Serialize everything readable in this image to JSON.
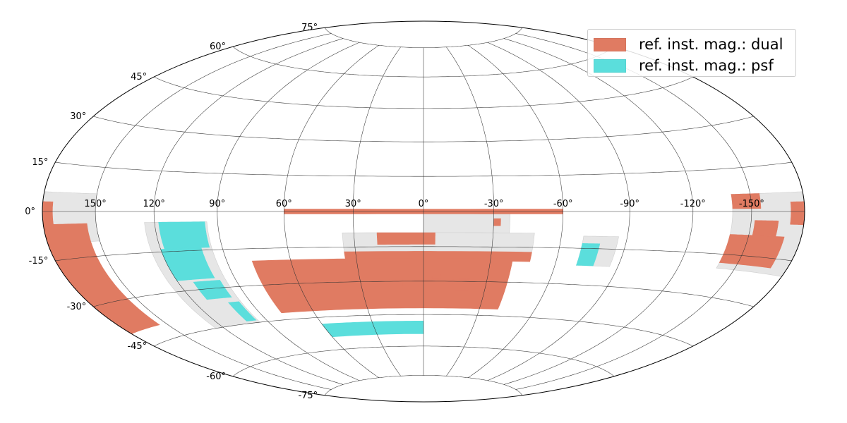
{
  "map": {
    "projection": "Hammer-Aitoff",
    "lon_center": 0,
    "lon_direction": "east-left",
    "grid": true,
    "lat_labels": [
      {
        "lat": 75,
        "text": "75°"
      },
      {
        "lat": 60,
        "text": "60°"
      },
      {
        "lat": 45,
        "text": "45°"
      },
      {
        "lat": 30,
        "text": "30°"
      },
      {
        "lat": 15,
        "text": "15°"
      },
      {
        "lat": 0,
        "text": "0°"
      },
      {
        "lat": -15,
        "text": "-15°"
      },
      {
        "lat": -30,
        "text": "-30°"
      },
      {
        "lat": -45,
        "text": "-45°"
      },
      {
        "lat": -60,
        "text": "-60°"
      },
      {
        "lat": -75,
        "text": "-75°"
      }
    ],
    "lon_labels": [
      {
        "lon": 150,
        "text": "150°"
      },
      {
        "lon": 120,
        "text": "120°"
      },
      {
        "lon": 90,
        "text": "90°"
      },
      {
        "lon": 60,
        "text": "60°"
      },
      {
        "lon": 30,
        "text": "30°"
      },
      {
        "lon": 0,
        "text": "0°"
      },
      {
        "lon": -30,
        "text": "-30°"
      },
      {
        "lon": -60,
        "text": "-60°"
      },
      {
        "lon": -90,
        "text": "-90°"
      },
      {
        "lon": -120,
        "text": "-120°"
      },
      {
        "lon": -150,
        "text": "-150°"
      }
    ],
    "colors": {
      "dual": "#e07b62",
      "psf": "#5bdedc",
      "footprint": "#e6e6e6",
      "grid": "#333333"
    }
  },
  "legend": {
    "placement": "top-right",
    "items": [
      {
        "label": "ref. inst. mag.: dual",
        "color": "#e07b62"
      },
      {
        "label": "ref. inst. mag.: psf",
        "color": "#5bdedc"
      }
    ]
  },
  "regions": [
    {
      "name": "equatorial-stripe",
      "kind": "dual",
      "lon": [
        -60,
        60
      ],
      "lat": [
        -1,
        1
      ]
    },
    {
      "name": "stripe-82-extension",
      "kind": "footprint",
      "lon": [
        -37,
        0
      ],
      "lat": [
        -9,
        -1
      ]
    },
    {
      "name": "stripe-82-notch",
      "kind": "dual",
      "lon": [
        -33,
        -30
      ],
      "lat": [
        -6,
        -3
      ]
    },
    {
      "name": "south-central-band",
      "kind": "footprint",
      "lon": [
        -48,
        35
      ],
      "lat": [
        -19,
        -9
      ]
    },
    {
      "name": "south-central-dual-blocks",
      "kind": "dual",
      "lon": [
        -5,
        20
      ],
      "lat": [
        -14,
        -9
      ]
    },
    {
      "name": "south-central-dual-strip",
      "kind": "dual",
      "lon": [
        -48,
        35
      ],
      "lat": [
        -21,
        -17
      ]
    },
    {
      "name": "south-wide-dual",
      "kind": "dual",
      "lon": [
        -40,
        78
      ],
      "lat": [
        -42,
        -20
      ]
    },
    {
      "name": "south-wide-interior",
      "kind": "footprint",
      "lon": [
        -30,
        30
      ],
      "lat": [
        -40,
        -26
      ]
    },
    {
      "name": "south-wide-patch-a",
      "kind": "dual",
      "lon": [
        10,
        16
      ],
      "lat": [
        -33,
        -29
      ]
    },
    {
      "name": "south-wide-patch-b",
      "kind": "dual",
      "lon": [
        -22,
        -14
      ],
      "lat": [
        -34,
        -29
      ]
    },
    {
      "name": "south-wide-patch-c",
      "kind": "dual",
      "lon": [
        -8,
        -4
      ],
      "lat": [
        -29,
        -27
      ]
    },
    {
      "name": "south-psf-cap",
      "kind": "psf",
      "lon": [
        0,
        60
      ],
      "lat": [
        -54,
        -48
      ]
    },
    {
      "name": "west-footprint",
      "kind": "footprint",
      "lon": [
        95,
        125
      ],
      "lat": [
        -45,
        -4
      ]
    },
    {
      "name": "west-psf-a",
      "kind": "psf",
      "lon": [
        96,
        118
      ],
      "lat": [
        -14,
        -4
      ]
    },
    {
      "name": "west-psf-b",
      "kind": "psf",
      "lon": [
        100,
        120
      ],
      "lat": [
        -26,
        -14
      ]
    },
    {
      "name": "west-psf-c",
      "kind": "psf",
      "lon": [
        98,
        112
      ],
      "lat": [
        -34,
        -27
      ]
    },
    {
      "name": "west-psf-d",
      "kind": "psf",
      "lon": [
        96,
        102
      ],
      "lat": [
        -44,
        -36
      ]
    },
    {
      "name": "edge-left-footprint",
      "kind": "footprint",
      "lon": [
        150,
        180
      ],
      "lat": [
        -10,
        6
      ]
    },
    {
      "name": "edge-left-dual",
      "kind": "dual",
      "lon": [
        155,
        180
      ],
      "lat": [
        -40,
        -4
      ]
    },
    {
      "name": "edge-left-dual-cap",
      "kind": "dual",
      "lon": [
        174,
        180
      ],
      "lat": [
        -4,
        3
      ]
    },
    {
      "name": "east-footprint",
      "kind": "footprint",
      "lon": [
        -86,
        -70
      ],
      "lat": [
        -22,
        -10
      ]
    },
    {
      "name": "east-psf",
      "kind": "psf",
      "lon": [
        -78,
        -70
      ],
      "lat": [
        -22,
        -13
      ]
    },
    {
      "name": "edge-right-footprint",
      "kind": "footprint",
      "lon": [
        -180,
        -140
      ],
      "lat": [
        -20,
        6
      ]
    },
    {
      "name": "edge-right-dual",
      "kind": "dual",
      "lon": [
        -170,
        -140
      ],
      "lat": [
        -18,
        -8
      ]
    },
    {
      "name": "edge-right-dual-top",
      "kind": "dual",
      "lon": [
        -155,
        -140
      ],
      "lat": [
        1,
        6
      ]
    },
    {
      "name": "edge-right-dual-edge",
      "kind": "dual",
      "lon": [
        -180,
        -172
      ],
      "lat": [
        -4,
        3
      ]
    },
    {
      "name": "edge-right-dual-mid",
      "kind": "dual",
      "lon": [
        -165,
        -152
      ],
      "lat": [
        -8,
        -3
      ]
    }
  ]
}
